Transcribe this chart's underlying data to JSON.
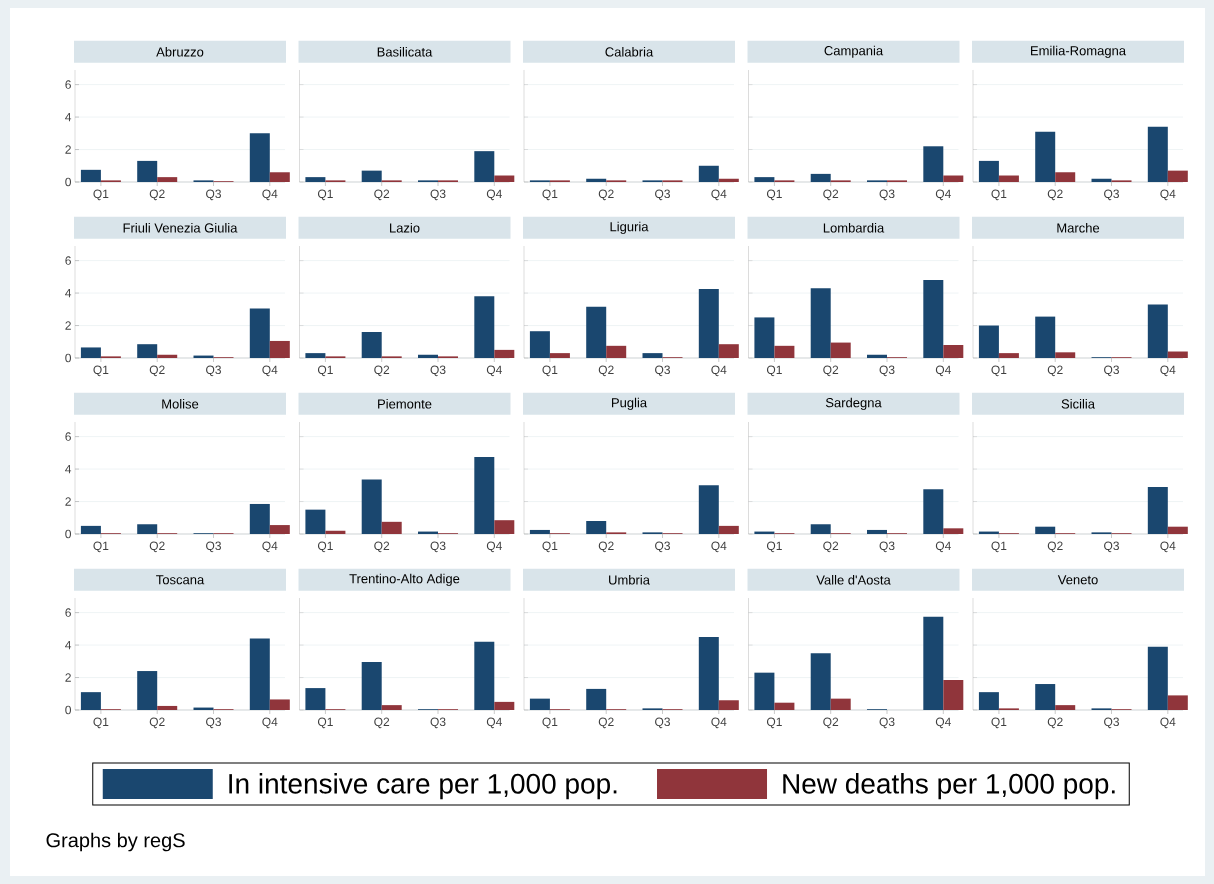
{
  "chart_data": [
    {
      "type": "bar",
      "title": "Abruzzo",
      "categories": [
        "Q1",
        "Q2",
        "Q3",
        "Q4"
      ],
      "series": [
        {
          "name": "In intensive care per 1,000 pop.",
          "color": "#1a476f",
          "values": [
            0.75,
            1.3,
            0.1,
            3.0
          ]
        },
        {
          "name": "New deaths per 1,000 pop.",
          "color": "#90353b",
          "values": [
            0.1,
            0.3,
            0.05,
            0.6
          ]
        }
      ],
      "ylim": [
        0,
        6.9
      ],
      "yticks": [
        0,
        2,
        4,
        6
      ],
      "grid": "y",
      "legend": "bottom",
      "annotations": [
        "Graphs by regS"
      ]
    },
    {
      "type": "bar",
      "title": "Basilicata",
      "categories": [
        "Q1",
        "Q2",
        "Q3",
        "Q4"
      ],
      "series": [
        {
          "color": "#1a476f",
          "values": [
            0.3,
            0.7,
            0.1,
            1.9
          ]
        },
        {
          "color": "#90353b",
          "values": [
            0.1,
            0.1,
            0.1,
            0.4
          ]
        }
      ],
      "ylim": [
        0,
        6.9
      ],
      "yticks": [
        0,
        2,
        4,
        6
      ],
      "grid": "y",
      "tick_labels": "x"
    },
    {
      "type": "bar",
      "title": "Calabria",
      "categories": [
        "Q1",
        "Q2",
        "Q3",
        "Q4"
      ],
      "series": [
        {
          "color": "#1a476f",
          "values": [
            0.1,
            0.2,
            0.1,
            1.0
          ]
        },
        {
          "color": "#90353b",
          "values": [
            0.1,
            0.1,
            0.1,
            0.2
          ]
        }
      ],
      "ylim": [
        0,
        6.9
      ],
      "yticks": [
        0,
        2,
        4,
        6
      ],
      "grid": "y",
      "tick_labels": "x"
    },
    {
      "type": "bar",
      "title": "Campania",
      "categories": [
        "Q1",
        "Q2",
        "Q3",
        "Q4"
      ],
      "series": [
        {
          "color": "#1a476f",
          "values": [
            0.3,
            0.5,
            0.1,
            2.2
          ]
        },
        {
          "color": "#90353b",
          "values": [
            0.1,
            0.1,
            0.1,
            0.4
          ]
        }
      ],
      "ylim": [
        0,
        6.9
      ],
      "yticks": [
        0,
        2,
        4,
        6
      ],
      "grid": "y",
      "tick_labels": "x"
    },
    {
      "type": "bar",
      "title": "Emilia-Romagna",
      "categories": [
        "Q1",
        "Q2",
        "Q3",
        "Q4"
      ],
      "series": [
        {
          "color": "#1a476f",
          "values": [
            1.3,
            3.1,
            0.2,
            3.4
          ]
        },
        {
          "color": "#90353b",
          "values": [
            0.4,
            0.6,
            0.1,
            0.7
          ]
        }
      ],
      "ylim": [
        0,
        6.9
      ],
      "yticks": [
        0,
        2,
        4,
        6
      ],
      "grid": "y",
      "tick_labels": "x"
    },
    {
      "type": "bar",
      "title": "Friuli Venezia Giulia",
      "categories": [
        "Q1",
        "Q2",
        "Q3",
        "Q4"
      ],
      "series": [
        {
          "color": "#1a476f",
          "values": [
            0.65,
            0.85,
            0.15,
            3.05
          ]
        },
        {
          "color": "#90353b",
          "values": [
            0.1,
            0.2,
            0.05,
            1.05
          ]
        }
      ],
      "ylim": [
        0,
        6.9
      ],
      "yticks": [
        0,
        2,
        4,
        6
      ],
      "grid": "y"
    },
    {
      "type": "bar",
      "title": "Lazio",
      "categories": [
        "Q1",
        "Q2",
        "Q3",
        "Q4"
      ],
      "series": [
        {
          "color": "#1a476f",
          "values": [
            0.3,
            1.6,
            0.2,
            3.8
          ]
        },
        {
          "color": "#90353b",
          "values": [
            0.1,
            0.1,
            0.1,
            0.5
          ]
        }
      ],
      "ylim": [
        0,
        6.9
      ],
      "yticks": [
        0,
        2,
        4,
        6
      ],
      "grid": "y",
      "tick_labels": "x"
    },
    {
      "type": "bar",
      "title": "Liguria",
      "categories": [
        "Q1",
        "Q2",
        "Q3",
        "Q4"
      ],
      "series": [
        {
          "color": "#1a476f",
          "values": [
            1.65,
            3.15,
            0.3,
            4.25
          ]
        },
        {
          "color": "#90353b",
          "values": [
            0.3,
            0.75,
            0.05,
            0.85
          ]
        }
      ],
      "ylim": [
        0,
        6.9
      ],
      "yticks": [
        0,
        2,
        4,
        6
      ],
      "grid": "y",
      "tick_labels": "x"
    },
    {
      "type": "bar",
      "title": "Lombardia",
      "categories": [
        "Q1",
        "Q2",
        "Q3",
        "Q4"
      ],
      "series": [
        {
          "color": "#1a476f",
          "values": [
            2.5,
            4.3,
            0.2,
            4.8
          ]
        },
        {
          "color": "#90353b",
          "values": [
            0.75,
            0.95,
            0.05,
            0.8
          ]
        }
      ],
      "ylim": [
        0,
        6.9
      ],
      "yticks": [
        0,
        2,
        4,
        6
      ],
      "grid": "y",
      "tick_labels": "x"
    },
    {
      "type": "bar",
      "title": "Marche",
      "categories": [
        "Q1",
        "Q2",
        "Q3",
        "Q4"
      ],
      "series": [
        {
          "color": "#1a476f",
          "values": [
            2.0,
            2.55,
            0.05,
            3.3
          ]
        },
        {
          "color": "#90353b",
          "values": [
            0.3,
            0.35,
            0.05,
            0.4
          ]
        }
      ],
      "ylim": [
        0,
        6.9
      ],
      "yticks": [
        0,
        2,
        4,
        6
      ],
      "grid": "y",
      "tick_labels": "x"
    },
    {
      "type": "bar",
      "title": "Molise",
      "categories": [
        "Q1",
        "Q2",
        "Q3",
        "Q4"
      ],
      "series": [
        {
          "color": "#1a476f",
          "values": [
            0.5,
            0.6,
            0.05,
            1.85
          ]
        },
        {
          "color": "#90353b",
          "values": [
            0.05,
            0.05,
            0.05,
            0.55
          ]
        }
      ],
      "ylim": [
        0,
        6.9
      ],
      "yticks": [
        0,
        2,
        4,
        6
      ],
      "grid": "y"
    },
    {
      "type": "bar",
      "title": "Piemonte",
      "categories": [
        "Q1",
        "Q2",
        "Q3",
        "Q4"
      ],
      "series": [
        {
          "color": "#1a476f",
          "values": [
            1.5,
            3.35,
            0.15,
            4.75
          ]
        },
        {
          "color": "#90353b",
          "values": [
            0.2,
            0.75,
            0.05,
            0.85
          ]
        }
      ],
      "ylim": [
        0,
        6.9
      ],
      "yticks": [
        0,
        2,
        4,
        6
      ],
      "grid": "y",
      "tick_labels": "x"
    },
    {
      "type": "bar",
      "title": "Puglia",
      "categories": [
        "Q1",
        "Q2",
        "Q3",
        "Q4"
      ],
      "series": [
        {
          "color": "#1a476f",
          "values": [
            0.25,
            0.8,
            0.1,
            3.0
          ]
        },
        {
          "color": "#90353b",
          "values": [
            0.05,
            0.1,
            0.05,
            0.5
          ]
        }
      ],
      "ylim": [
        0,
        6.9
      ],
      "yticks": [
        0,
        2,
        4,
        6
      ],
      "grid": "y",
      "tick_labels": "x"
    },
    {
      "type": "bar",
      "title": "Sardegna",
      "categories": [
        "Q1",
        "Q2",
        "Q3",
        "Q4"
      ],
      "series": [
        {
          "color": "#1a476f",
          "values": [
            0.15,
            0.6,
            0.25,
            2.75
          ]
        },
        {
          "color": "#90353b",
          "values": [
            0.05,
            0.05,
            0.05,
            0.35
          ]
        }
      ],
      "ylim": [
        0,
        6.9
      ],
      "yticks": [
        0,
        2,
        4,
        6
      ],
      "grid": "y",
      "tick_labels": "x"
    },
    {
      "type": "bar",
      "title": "Sicilia",
      "categories": [
        "Q1",
        "Q2",
        "Q3",
        "Q4"
      ],
      "series": [
        {
          "color": "#1a476f",
          "values": [
            0.15,
            0.45,
            0.1,
            2.9
          ]
        },
        {
          "color": "#90353b",
          "values": [
            0.05,
            0.05,
            0.05,
            0.45
          ]
        }
      ],
      "ylim": [
        0,
        6.9
      ],
      "yticks": [
        0,
        2,
        4,
        6
      ],
      "grid": "y",
      "tick_labels": "x"
    },
    {
      "type": "bar",
      "title": "Toscana",
      "categories": [
        "Q1",
        "Q2",
        "Q3",
        "Q4"
      ],
      "series": [
        {
          "color": "#1a476f",
          "values": [
            1.1,
            2.4,
            0.15,
            4.4
          ]
        },
        {
          "color": "#90353b",
          "values": [
            0.05,
            0.25,
            0.05,
            0.65
          ]
        }
      ],
      "ylim": [
        0,
        6.9
      ],
      "yticks": [
        0,
        2,
        4,
        6
      ],
      "grid": "y"
    },
    {
      "type": "bar",
      "title": "Trentino-Alto Adige",
      "categories": [
        "Q1",
        "Q2",
        "Q3",
        "Q4"
      ],
      "series": [
        {
          "color": "#1a476f",
          "values": [
            1.35,
            2.95,
            0.05,
            4.2
          ]
        },
        {
          "color": "#90353b",
          "values": [
            0.05,
            0.3,
            0.05,
            0.5
          ]
        }
      ],
      "ylim": [
        0,
        6.9
      ],
      "yticks": [
        0,
        2,
        4,
        6
      ],
      "grid": "y",
      "tick_labels": "x"
    },
    {
      "type": "bar",
      "title": "Umbria",
      "categories": [
        "Q1",
        "Q2",
        "Q3",
        "Q4"
      ],
      "series": [
        {
          "color": "#1a476f",
          "values": [
            0.7,
            1.3,
            0.1,
            4.5
          ]
        },
        {
          "color": "#90353b",
          "values": [
            0.05,
            0.05,
            0.05,
            0.6
          ]
        }
      ],
      "ylim": [
        0,
        6.9
      ],
      "yticks": [
        0,
        2,
        4,
        6
      ],
      "grid": "y",
      "tick_labels": "x"
    },
    {
      "type": "bar",
      "title": "Valle d'Aosta",
      "categories": [
        "Q1",
        "Q2",
        "Q3",
        "Q4"
      ],
      "series": [
        {
          "color": "#1a476f",
          "values": [
            2.3,
            3.5,
            0.05,
            5.75
          ]
        },
        {
          "color": "#90353b",
          "values": [
            0.45,
            0.7,
            0.0,
            1.85
          ]
        }
      ],
      "ylim": [
        0,
        6.9
      ],
      "yticks": [
        0,
        2,
        4,
        6
      ],
      "grid": "y",
      "tick_labels": "x"
    },
    {
      "type": "bar",
      "title": "Veneto",
      "categories": [
        "Q1",
        "Q2",
        "Q3",
        "Q4"
      ],
      "series": [
        {
          "color": "#1a476f",
          "values": [
            1.1,
            1.6,
            0.1,
            3.9
          ]
        },
        {
          "color": "#90353b",
          "values": [
            0.1,
            0.3,
            0.05,
            0.9
          ]
        }
      ],
      "ylim": [
        0,
        6.9
      ],
      "yticks": [
        0,
        2,
        4,
        6
      ],
      "grid": "y",
      "tick_labels": "x"
    }
  ]
}
